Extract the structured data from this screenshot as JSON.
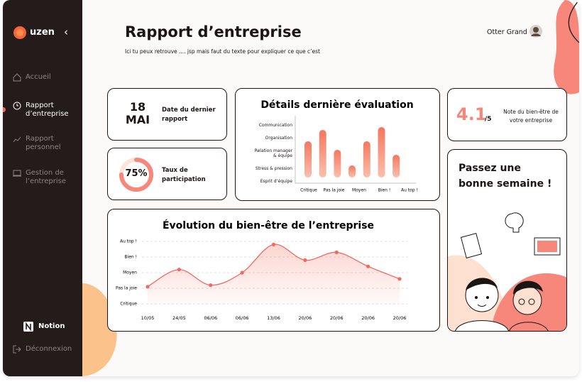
{
  "sidebar": {
    "brand": "uzen",
    "nav": [
      "Accueil",
      "Rapport d’entreprise",
      "Rapport personnel",
      "Gestion de l’entreprise"
    ],
    "notion": "Notion",
    "logout": "Déconnexion"
  },
  "header": {
    "title": "Rapport d’entreprise",
    "subtitle": "Ici tu peux retrouve .... jsp mais faut du texte pour expliquer ce que c’est",
    "user": "Otter Grand"
  },
  "cards": {
    "date": {
      "day": "18",
      "month": "MAI",
      "label": "Date du dernier rapport"
    },
    "participation": {
      "value": 75,
      "value_label": "75%",
      "label": "Taux de participation"
    },
    "score": {
      "value": 4.1,
      "scale": "/5",
      "label": "Note du bien-être de votre entreprise"
    },
    "greeting": "Passez une bonne semaine !"
  },
  "chart_data": [
    {
      "type": "bar",
      "title": "Détails dernière évaluation",
      "y_labels": [
        "Communication",
        "Organisation",
        "Relation manager & équipe",
        "Stress & pression",
        "Esprit d’équipe"
      ],
      "x_labels": [
        "Critique",
        "Pas la joie",
        "Moyen",
        "Bien !",
        "Au top !"
      ],
      "categories": [
        null,
        null,
        null,
        null,
        null,
        null,
        null
      ],
      "values": [
        51,
        67,
        39,
        17,
        51,
        71,
        32
      ],
      "color": "#f6876f",
      "ylim": [
        0,
        85
      ]
    },
    {
      "type": "line",
      "title": "Évolution du bien-être de l’entreprise",
      "categories": [
        "10/05",
        "24/05",
        "06/06",
        "06/06",
        "13/06",
        "20/06",
        "20/06",
        "20/06",
        "20/06"
      ],
      "values": [
        1.1,
        2.2,
        1.2,
        2.0,
        3.8,
        2.8,
        3.3,
        2.4,
        1.6
      ],
      "color": "#ef6a5f",
      "ylim": [
        0,
        4
      ],
      "yticks": [
        {
          "value": 0,
          "label": "Critique"
        },
        {
          "value": 1,
          "label": "Pas la joie"
        },
        {
          "value": 2,
          "label": "Moyen"
        },
        {
          "value": 3,
          "label": "Bien !"
        },
        {
          "value": 4,
          "label": "Au top !"
        }
      ],
      "grid": true
    }
  ]
}
